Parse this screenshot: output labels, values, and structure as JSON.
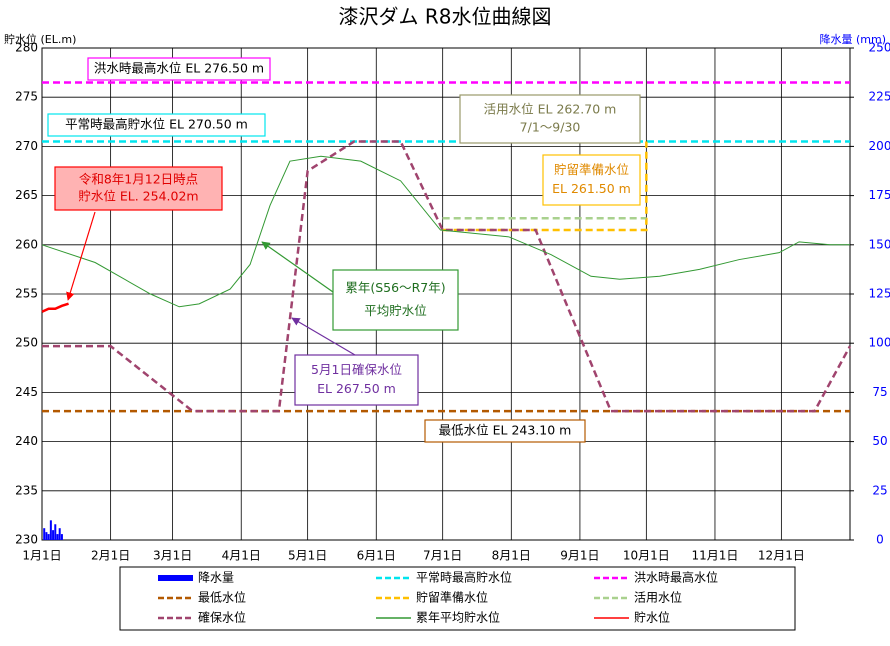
{
  "chart_data": {
    "type": "line",
    "title": "漆沢ダム R8水位曲線図",
    "y_label": "貯水位 (EL.m)",
    "y2_label": "降水量 (mm)",
    "xlim": [
      0,
      365
    ],
    "xticks": [
      {
        "value": 0,
        "label": "1月1日"
      },
      {
        "value": 31,
        "label": "2月1日"
      },
      {
        "value": 59,
        "label": "3月1日"
      },
      {
        "value": 90,
        "label": "4月1日"
      },
      {
        "value": 120,
        "label": "5月1日"
      },
      {
        "value": 151,
        "label": "6月1日"
      },
      {
        "value": 181,
        "label": "7月1日"
      },
      {
        "value": 212,
        "label": "8月1日"
      },
      {
        "value": 243,
        "label": "9月1日"
      },
      {
        "value": 273,
        "label": "10月1日"
      },
      {
        "value": 304,
        "label": "11月1日"
      },
      {
        "value": 334,
        "label": "12月1日"
      }
    ],
    "ylim": [
      230,
      280
    ],
    "yticks": [
      230,
      235,
      240,
      245,
      250,
      255,
      260,
      265,
      270,
      275,
      280
    ],
    "y2lim": [
      0,
      250
    ],
    "y2ticks": [
      0,
      25,
      50,
      75,
      100,
      125,
      150,
      175,
      200,
      225,
      250
    ],
    "grid": true,
    "series": [
      {
        "name": "降水量",
        "type": "bar",
        "axis": "y2",
        "color": "#0000ff",
        "x": [
          1,
          2,
          3,
          4,
          5,
          6,
          7,
          8,
          9
        ],
        "values": [
          6,
          4,
          3,
          10,
          5,
          8,
          3,
          6,
          3
        ]
      },
      {
        "name": "平常時最高貯水位",
        "color": "#00e5ee",
        "dashed": true,
        "x": [
          0,
          365
        ],
        "values": [
          270.5,
          270.5
        ]
      },
      {
        "name": "洪水時最高水位",
        "color": "#ff00ff",
        "dashed": true,
        "x": [
          0,
          365
        ],
        "values": [
          276.5,
          276.5
        ]
      },
      {
        "name": "最低水位",
        "color": "#b35900",
        "dashed": true,
        "x": [
          0,
          365
        ],
        "values": [
          243.1,
          243.1
        ]
      },
      {
        "name": "貯留準備水位",
        "color": "#ffc000",
        "dashed": true,
        "x": [
          181,
          273,
          273
        ],
        "values": [
          261.5,
          261.5,
          270.5
        ]
      },
      {
        "name": "活用水位",
        "color": "#a9d18e",
        "dashed": true,
        "x": [
          181,
          273
        ],
        "values": [
          262.7,
          262.7
        ]
      },
      {
        "name": "確保水位",
        "color": "#a0446e",
        "dashed": true,
        "x": [
          0,
          31,
          68,
          107,
          120,
          141,
          162,
          181,
          223,
          257,
          349,
          365
        ],
        "values": [
          249.7,
          249.7,
          243.1,
          243.1,
          267.5,
          270.5,
          270.5,
          261.5,
          261.5,
          243.1,
          243.1,
          249.7
        ]
      },
      {
        "name": "累年平均貯水位",
        "color": "#339933",
        "dashed": false,
        "x": [
          0,
          24,
          49,
          62,
          71,
          85,
          94,
          103,
          112,
          126,
          144,
          162,
          180,
          211,
          230,
          248,
          261,
          279,
          297,
          315,
          333,
          342,
          356,
          365
        ],
        "values": [
          260,
          258.2,
          255,
          253.7,
          254,
          255.5,
          258,
          264,
          268.5,
          269,
          268.5,
          266.5,
          261.5,
          260.8,
          259,
          256.8,
          256.5,
          256.8,
          257.5,
          258.5,
          259.2,
          260.3,
          260,
          260
        ]
      },
      {
        "name": "貯水位",
        "color": "#ff0000",
        "dashed": false,
        "x": [
          0,
          3,
          6,
          9,
          12
        ],
        "values": [
          253.2,
          253.5,
          253.5,
          253.8,
          254.02
        ]
      }
    ],
    "annotations": [
      {
        "lines": [
          "洪水時最高水位  EL 276.50  m"
        ]
      },
      {
        "lines": [
          "平常時最高貯水位  EL 270.50 m"
        ]
      },
      {
        "lines": [
          "活用水位 EL 262.70 m",
          "7/1～9/30"
        ]
      },
      {
        "lines": [
          "貯留準備水位",
          "EL 261.50 m"
        ]
      },
      {
        "lines": [
          "令和8年1月12日時点",
          "貯水位 EL. 254.02m"
        ]
      },
      {
        "lines": [
          "累年(S56～R7年)",
          "平均貯水位"
        ]
      },
      {
        "lines": [
          "5月1日確保水位",
          "EL 267.50 m"
        ]
      },
      {
        "lines": [
          "最低水位  EL 243.10 m"
        ]
      }
    ]
  }
}
